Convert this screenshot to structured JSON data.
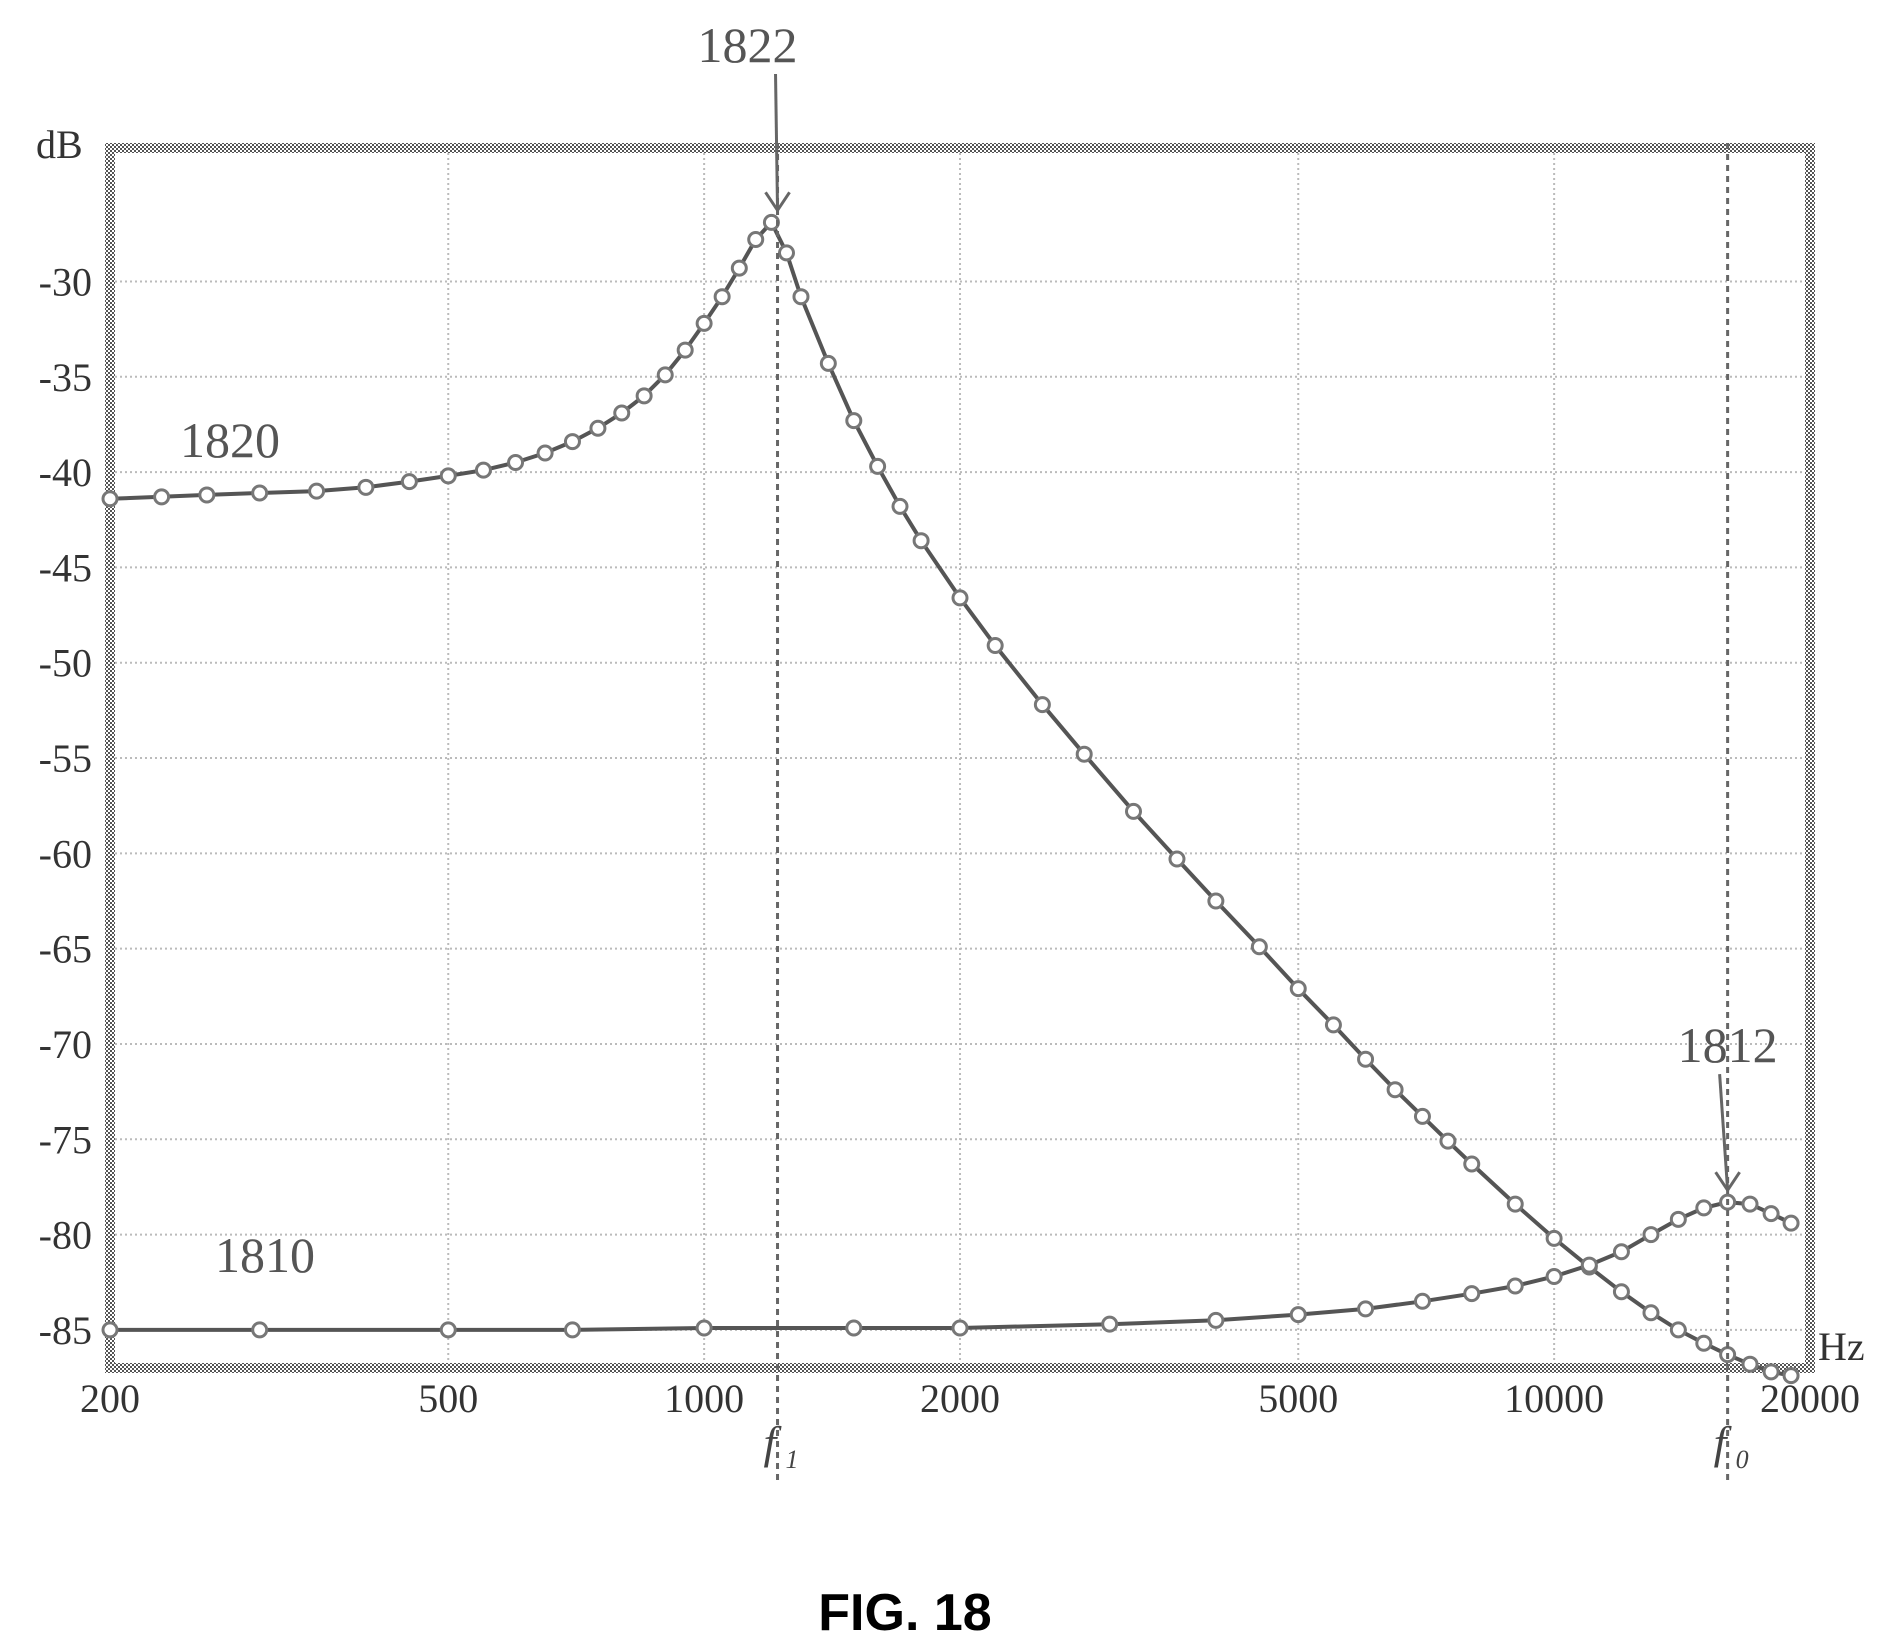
{
  "chart_data": {
    "type": "line",
    "x_scale": "log",
    "xlim": [
      200,
      20000
    ],
    "ylim": [
      -87,
      -23
    ],
    "x_ticks": [
      200,
      500,
      1000,
      2000,
      5000,
      10000,
      20000
    ],
    "x_tick_labels": [
      "200",
      "500",
      "1000",
      "2000",
      "5000",
      "10000",
      "20000"
    ],
    "y_ticks": [
      -30,
      -35,
      -40,
      -45,
      -50,
      -55,
      -60,
      -65,
      -70,
      -75,
      -80,
      -85
    ],
    "y_tick_labels": [
      "-30",
      "-35",
      "-40",
      "-45",
      "-50",
      "-55",
      "-60",
      "-65",
      "-70",
      "-75",
      "-80",
      "-85"
    ],
    "x_unit": "Hz",
    "y_unit": "dB",
    "grid": true,
    "caption": "FIG. 18",
    "series": [
      {
        "label": "1820",
        "x": [
          200,
          230,
          260,
          300,
          350,
          400,
          450,
          500,
          550,
          600,
          650,
          700,
          750,
          800,
          850,
          900,
          950,
          1000,
          1050,
          1100,
          1150,
          1200,
          1250,
          1300,
          1400,
          1500,
          1600,
          1700,
          1800,
          2000,
          2200,
          2500,
          2800,
          3200,
          3600,
          4000,
          4500,
          5000,
          5500,
          6000,
          6500,
          7000,
          7500,
          8000,
          9000,
          10000,
          11000,
          12000,
          13000,
          14000,
          15000,
          16000,
          17000,
          18000,
          19000
        ],
        "y": [
          -41.4,
          -41.3,
          -41.2,
          -41.1,
          -41.0,
          -40.8,
          -40.5,
          -40.2,
          -39.9,
          -39.5,
          -39.0,
          -38.4,
          -37.7,
          -36.9,
          -36.0,
          -34.9,
          -33.6,
          -32.2,
          -30.8,
          -29.3,
          -27.8,
          -26.9,
          -28.5,
          -30.8,
          -34.3,
          -37.3,
          -39.7,
          -41.8,
          -43.6,
          -46.6,
          -49.1,
          -52.2,
          -54.8,
          -57.8,
          -60.3,
          -62.5,
          -64.9,
          -67.1,
          -69.0,
          -70.8,
          -72.4,
          -73.8,
          -75.1,
          -76.3,
          -78.4,
          -80.2,
          -81.7,
          -83.0,
          -84.1,
          -85.0,
          -85.7,
          -86.3,
          -86.8,
          -87.2,
          -87.4
        ]
      },
      {
        "label": "1810",
        "x": [
          200,
          300,
          500,
          700,
          1000,
          1500,
          2000,
          3000,
          4000,
          5000,
          6000,
          7000,
          8000,
          9000,
          10000,
          11000,
          12000,
          13000,
          14000,
          15000,
          16000,
          17000,
          18000,
          19000
        ],
        "y": [
          -85.0,
          -85.0,
          -85.0,
          -85.0,
          -84.9,
          -84.9,
          -84.9,
          -84.7,
          -84.5,
          -84.2,
          -83.9,
          -83.5,
          -83.1,
          -82.7,
          -82.2,
          -81.6,
          -80.9,
          -80.0,
          -79.2,
          -78.6,
          -78.3,
          -78.4,
          -78.9,
          -79.4
        ]
      }
    ],
    "annotations": [
      {
        "text": "1822",
        "x": 1220,
        "y": -26.9
      },
      {
        "text": "1812",
        "x": 16000,
        "y": -78.3
      }
    ],
    "markers": [
      {
        "symbol": "f",
        "subscript": "1",
        "x": 1220
      },
      {
        "symbol": "f",
        "subscript": "0",
        "x": 16000
      }
    ]
  }
}
